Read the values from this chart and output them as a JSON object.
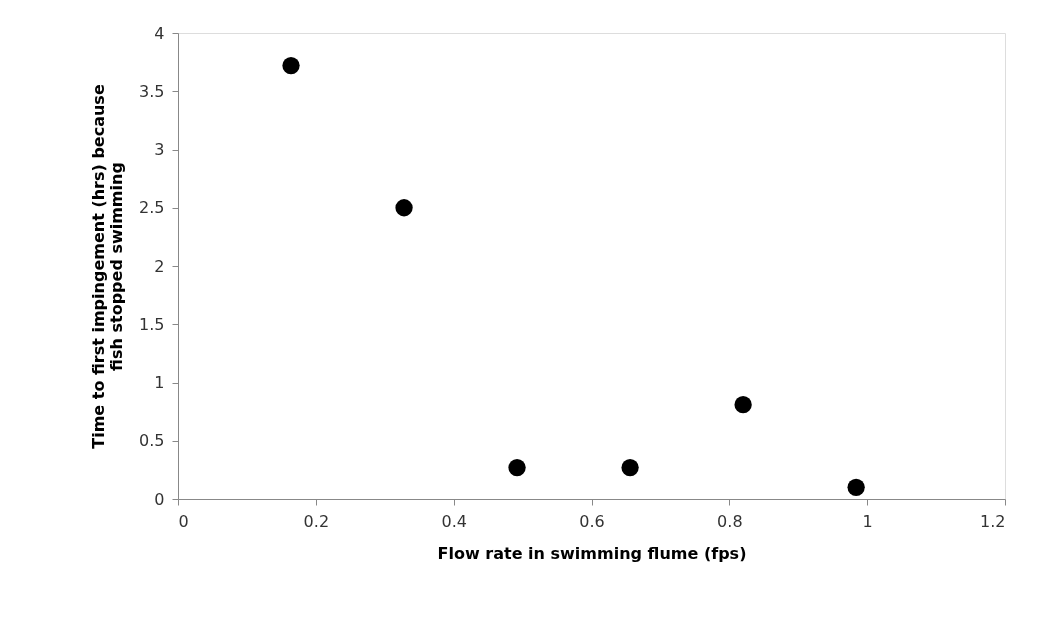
{
  "chart_data": {
    "type": "scatter",
    "xlabel": "Flow rate in swimming flume (fps)",
    "ylabel": "Time to first impingement (hrs) because fish stopped swimming",
    "x": [
      0.164,
      0.328,
      0.492,
      0.656,
      0.82,
      0.984
    ],
    "series": [
      {
        "color": "#000000",
        "values": [
          3.72,
          2.5,
          0.27,
          0.27,
          0.81,
          0.1
        ]
      }
    ],
    "xlim": [
      0,
      1.2
    ],
    "xticks": [
      0,
      0.2,
      0.4,
      0.6,
      0.8,
      1,
      1.2
    ],
    "ylim": [
      0,
      4
    ],
    "yticks": [
      0,
      0.5,
      1,
      1.5,
      2,
      2.5,
      3,
      3.5,
      4
    ],
    "grid": false,
    "legend": false,
    "marker": "circle"
  }
}
